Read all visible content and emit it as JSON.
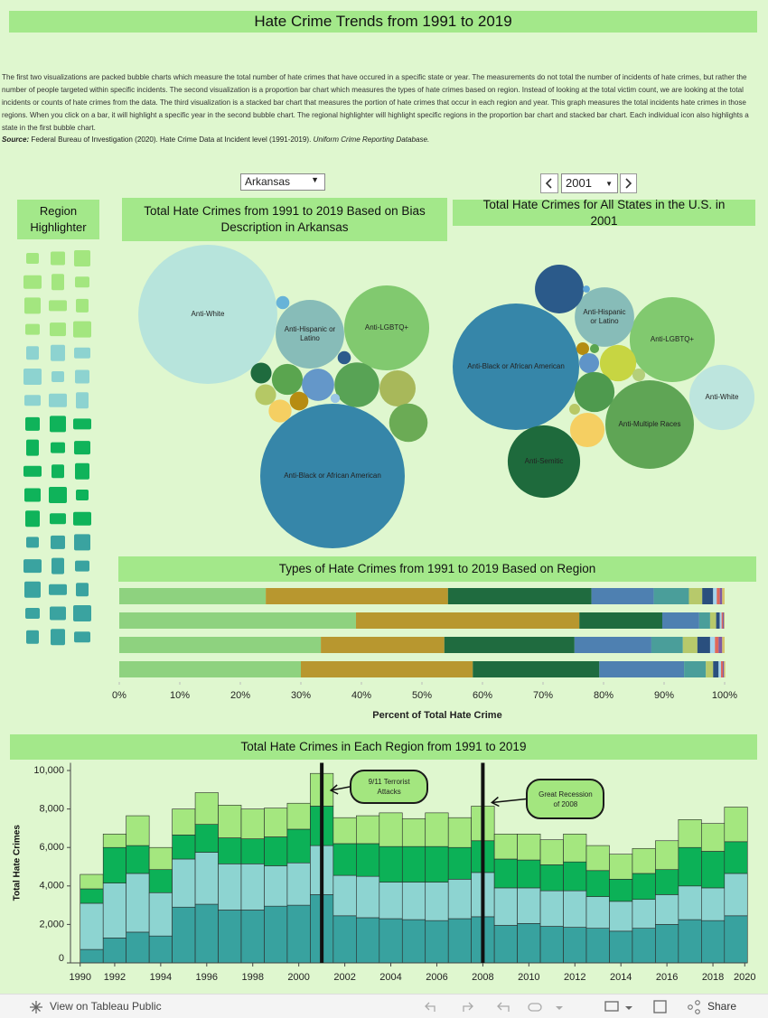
{
  "header": {
    "title": "Hate Crime Trends from 1991 to 2019",
    "description": "The first two visualizations are packed bubble charts which measure the total number of hate crimes that have occured in a specific state or year.  The measurements do not total the number of incidents of hate crimes, but rather the number of people targeted within specific incidents. The second visualization is a proportion bar chart which measures the types of hate crimes based on region. Instead of looking at the total victim count, we are looking at the total incidents or counts of hate crimes from the data. The third visualization is a stacked bar chart that measures the portion of hate crimes that occur in each region and year. This graph measures the total incidents hate crimes in those regions.  When you click on a bar, it will highlight a specific year in the second bubble chart. The regional highlighter will highlight specific regions in the proportion bar chart and stacked bar chart. Each individual icon also highlights a state in the first bubble chart.",
    "source_label": "Source:",
    "source_text": "Federal Bureau of Investigation (2020). Hate Crime Data at Incident level (1991-2019).",
    "source_italic": "Uniform Crime Reporting Database."
  },
  "controls": {
    "state": "Arkansas",
    "year": "2001"
  },
  "region_highlighter": {
    "title": "Region Highlighter"
  },
  "footer": {
    "link": "View on Tableau Public",
    "share": "Share"
  },
  "chart_data": [
    {
      "type": "packed_bubble",
      "title": "Total Hate Crimes from 1991 to 2019 Based on Bias Description in Arkansas",
      "categories": [
        "Anti-White",
        "Anti-Black or African American",
        "Anti-Hispanic or Latino",
        "Anti-LGBTQ+",
        null,
        null,
        null,
        null,
        null,
        null,
        null,
        null,
        null,
        null,
        null,
        null
      ],
      "values": [
        222,
        240,
        54,
        83,
        2,
        2,
        5,
        11,
        12,
        23,
        15,
        5,
        4,
        1,
        6,
        17
      ],
      "colors": [
        "#b7e4dc",
        "#3686a9",
        "#87bcb8",
        "#81c96f",
        "#67b3d8",
        "#2d5b8c",
        "#1f6b3e",
        "#5aa54f",
        "#6497c9",
        "#58a355",
        "#a8b85a",
        "#b5c865",
        "#b68c12",
        "#99c6e6",
        "#f5cf62",
        "#6bab55"
      ]
    },
    {
      "type": "packed_bubble",
      "title": "Total Hate Crimes for All States in the U.S. in 2001",
      "categories": [
        "Anti-Black or African American",
        "Anti-Multiple Races",
        "Anti-LGBTQ+",
        "Anti-White",
        "Anti-Semitic",
        "Anti-Hispanic or Latino",
        null,
        null,
        null,
        null,
        null,
        null,
        null,
        null,
        null,
        null
      ],
      "values": [
        2900,
        1420,
        1310,
        770,
        950,
        640,
        430,
        9,
        29,
        15,
        72,
        240,
        29,
        290,
        21,
        215
      ],
      "colors": [
        "#3686a9",
        "#5fa555",
        "#81c96f",
        "#bde5de",
        "#1e6a3c",
        "#87bcb8",
        "#2b5a8a",
        "#5fa7d8",
        "#b48c11",
        "#5aa54f",
        "#5f94c8",
        "#c7d542",
        "#b4cf7a",
        "#4e9a4e",
        "#b8c865",
        "#f5cf62"
      ]
    },
    {
      "type": "bar",
      "orientation": "horizontal",
      "stacked": true,
      "title": "Types of Hate Crimes from 1991 to 2019 Based on Region",
      "xlabel": "Percent of Total Hate Crime",
      "categories": [
        null,
        null,
        null,
        null
      ],
      "xlim": [
        0,
        100
      ],
      "xticks": [
        {
          "value": 0,
          "label": "0%"
        },
        {
          "value": 10,
          "label": "10%"
        },
        {
          "value": 20,
          "label": "20%"
        },
        {
          "value": 30,
          "label": "30%"
        },
        {
          "value": 40,
          "label": "40%"
        },
        {
          "value": 50,
          "label": "50%"
        },
        {
          "value": 60,
          "label": "60%"
        },
        {
          "value": 70,
          "label": "70%"
        },
        {
          "value": 80,
          "label": "80%"
        },
        {
          "value": 90,
          "label": "90%"
        },
        {
          "value": 100,
          "label": "100%"
        }
      ],
      "series": [
        {
          "color": "#8ed27f",
          "values": [
            24.2,
            39.1,
            33.3,
            30.0
          ]
        },
        {
          "color": "#b8972f",
          "values": [
            30.1,
            36.9,
            20.4,
            28.4
          ]
        },
        {
          "color": "#1f6b3f",
          "values": [
            23.7,
            13.7,
            21.5,
            20.9
          ]
        },
        {
          "color": "#4e80b1",
          "values": [
            10.3,
            6.1,
            12.7,
            14.0
          ]
        },
        {
          "color": "#4a9e9a",
          "values": [
            5.8,
            1.8,
            5.2,
            3.6
          ]
        },
        {
          "color": "#b7c96b",
          "values": [
            2.2,
            1.0,
            2.4,
            1.2
          ]
        },
        {
          "color": "#2a4f7e",
          "values": [
            1.8,
            0.6,
            2.1,
            0.9
          ]
        },
        {
          "color": "#a7d4ec",
          "values": [
            0.6,
            0.3,
            0.8,
            0.4
          ]
        },
        {
          "color": "#e0685a",
          "values": [
            0.5,
            0.2,
            0.6,
            0.3
          ]
        },
        {
          "color": "#7f5aa3",
          "values": [
            0.4,
            0.2,
            0.6,
            0.2
          ]
        },
        {
          "color": "#d8c46b",
          "values": [
            0.4,
            0.1,
            0.4,
            0.2
          ]
        }
      ]
    },
    {
      "type": "bar",
      "orientation": "vertical",
      "stacked": true,
      "title": "Total Hate Crimes in Each Region from 1991 to 2019",
      "ylabel": "Total Hate Crimes",
      "x": [
        1991,
        1992,
        1993,
        1994,
        1995,
        1996,
        1997,
        1998,
        1999,
        2000,
        2001,
        2002,
        2003,
        2004,
        2005,
        2006,
        2007,
        2008,
        2009,
        2010,
        2011,
        2012,
        2013,
        2014,
        2015,
        2016,
        2017,
        2018,
        2019
      ],
      "xlim": [
        1990,
        2020
      ],
      "xticks": [
        1990,
        1992,
        1994,
        1996,
        1998,
        2000,
        2002,
        2004,
        2006,
        2008,
        2010,
        2012,
        2014,
        2016,
        2018,
        2020
      ],
      "ylim": [
        0,
        10400
      ],
      "yticks": [
        0,
        {
          "value": 2000,
          "label": "2,000"
        },
        {
          "value": 4000,
          "label": "4,000"
        },
        {
          "value": 6000,
          "label": "6,000"
        },
        {
          "value": 8000,
          "label": "8,000"
        },
        {
          "value": 10000,
          "label": "10,000"
        }
      ],
      "series": [
        {
          "color": "#38a29f",
          "values": [
            700,
            1300,
            1600,
            1400,
            2900,
            3050,
            2750,
            2750,
            2950,
            3000,
            3550,
            2450,
            2350,
            2300,
            2250,
            2200,
            2300,
            2400,
            1950,
            2050,
            1900,
            1850,
            1800,
            1650,
            1800,
            2000,
            2250,
            2200,
            2450
          ]
        },
        {
          "color": "#8dd4d1",
          "values": [
            2400,
            2850,
            3050,
            2250,
            2500,
            2700,
            2400,
            2400,
            2100,
            2200,
            2550,
            2100,
            2150,
            1900,
            1950,
            2000,
            2050,
            2300,
            1950,
            1850,
            1850,
            1900,
            1650,
            1550,
            1500,
            1550,
            1750,
            1700,
            2200
          ]
        },
        {
          "color": "#0cb157",
          "values": [
            750,
            1850,
            1450,
            1200,
            1250,
            1450,
            1350,
            1300,
            1500,
            1750,
            2050,
            1650,
            1700,
            1850,
            1850,
            1850,
            1650,
            1650,
            1500,
            1450,
            1350,
            1500,
            1350,
            1150,
            1350,
            1300,
            2000,
            1900,
            1650
          ]
        },
        {
          "color": "#a4e77f",
          "values": [
            750,
            700,
            1550,
            1150,
            1350,
            1650,
            1700,
            1550,
            1500,
            1350,
            1700,
            1350,
            1450,
            1750,
            1450,
            1750,
            1550,
            1800,
            1300,
            1350,
            1300,
            1450,
            1300,
            1300,
            1300,
            1500,
            1450,
            1450,
            1800
          ]
        }
      ],
      "annotations": [
        {
          "text": "9/11 Terrorist Attacks",
          "x": 2001
        },
        {
          "text": "Great Recession of 2008",
          "x": 2008
        }
      ]
    }
  ]
}
